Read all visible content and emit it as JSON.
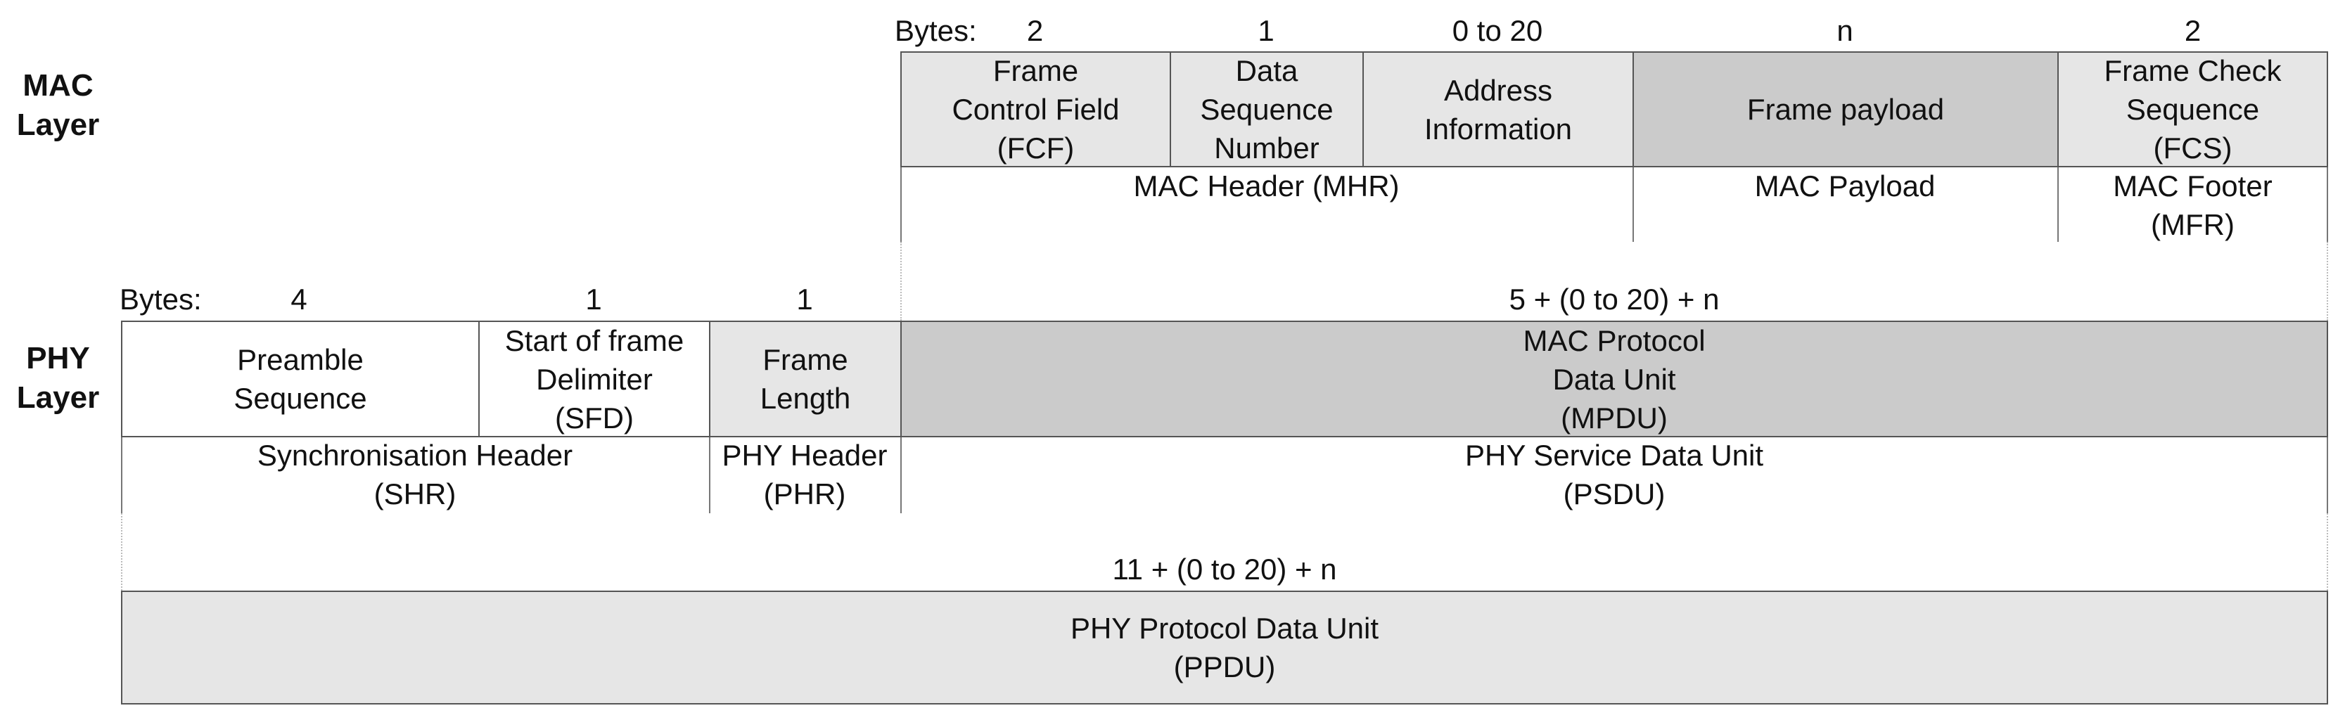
{
  "mac_layer": {
    "label": "MAC\nLayer",
    "bytes_label": "Bytes:",
    "byte_sizes": [
      "2",
      "1",
      "0 to 20",
      "n",
      "2"
    ],
    "fields": [
      "Frame\nControl Field\n(FCF)",
      "Data\nSequence\nNumber",
      "Address\nInformation",
      "Frame payload",
      "Frame Check\nSequence\n(FCS)"
    ],
    "groups": [
      "MAC Header (MHR)",
      "MAC Payload",
      "MAC Footer\n(MFR)"
    ]
  },
  "phy_layer": {
    "label": "PHY\nLayer",
    "bytes_label": "Bytes:",
    "byte_sizes": [
      "4",
      "1",
      "1",
      "5 + (0 to 20) + n"
    ],
    "fields": [
      "Preamble\nSequence",
      "Start of frame\nDelimiter\n(SFD)",
      "Frame\nLength",
      "MAC Protocol\nData Unit\n(MPDU)"
    ],
    "groups": [
      "Synchronisation Header\n(SHR)",
      "PHY Header\n(PHR)",
      "PHY Service Data Unit\n(PSDU)"
    ]
  },
  "ppdu": {
    "total_bytes": "11 + (0 to 20) + n",
    "label": "PHY Protocol Data Unit\n(PPDU)"
  },
  "colors": {
    "light_fill": "#e6e6e6",
    "dark_fill": "#cbcbcb",
    "border": "#555555"
  }
}
